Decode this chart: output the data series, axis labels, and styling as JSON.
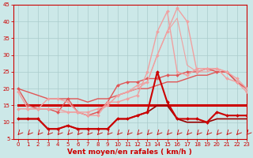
{
  "xlabel": "Vent moyen/en rafales ( km/h )",
  "ylim": [
    5,
    45
  ],
  "xlim": [
    -0.5,
    23
  ],
  "yticks": [
    5,
    10,
    15,
    20,
    25,
    30,
    35,
    40,
    45
  ],
  "xticks": [
    0,
    1,
    2,
    3,
    4,
    5,
    6,
    7,
    8,
    9,
    10,
    11,
    12,
    13,
    14,
    15,
    16,
    17,
    18,
    19,
    20,
    21,
    22,
    23
  ],
  "bg_color": "#cce8e8",
  "grid_color": "#aacccc",
  "series": [
    {
      "x": [
        0,
        1,
        2,
        3,
        4,
        5,
        6,
        7,
        8,
        9,
        10,
        11,
        12,
        13,
        14,
        15,
        16,
        17,
        18,
        19,
        20,
        21,
        22,
        23
      ],
      "y": [
        11,
        11,
        11,
        8,
        8,
        9,
        8,
        8,
        8,
        8,
        11,
        11,
        12,
        13,
        25,
        16,
        11,
        11,
        11,
        10,
        13,
        12,
        12,
        12
      ],
      "color": "#cc0000",
      "lw": 1.5,
      "marker": "D",
      "ms": 2.0,
      "zorder": 5
    },
    {
      "x": [
        0,
        1,
        2,
        3,
        4,
        5,
        6,
        7,
        8,
        9,
        10,
        11,
        12,
        13,
        14,
        15,
        16,
        17,
        18,
        19,
        20,
        21,
        22,
        23
      ],
      "y": [
        11,
        11,
        11,
        8,
        8,
        9,
        8,
        8,
        8,
        8,
        11,
        11,
        12,
        13,
        15,
        15,
        11,
        10,
        10,
        10,
        11,
        11,
        11,
        11
      ],
      "color": "#990000",
      "lw": 1.2,
      "marker": null,
      "ms": 0,
      "zorder": 4
    },
    {
      "x": [
        0,
        1,
        2,
        3,
        4,
        5,
        6,
        7,
        8,
        9,
        10,
        11,
        12,
        13,
        14,
        15,
        16,
        17,
        18,
        19,
        20,
        21,
        22,
        23
      ],
      "y": [
        15,
        15,
        15,
        15,
        15,
        15,
        15,
        15,
        15,
        15,
        15,
        15,
        15,
        15,
        15,
        15,
        15,
        15,
        15,
        15,
        15,
        15,
        15,
        15
      ],
      "color": "#cc0000",
      "lw": 2.2,
      "marker": null,
      "ms": 0,
      "zorder": 3
    },
    {
      "x": [
        0,
        1,
        2,
        3,
        4,
        5,
        6,
        7,
        8,
        9,
        10,
        11,
        12,
        13,
        14,
        15,
        16,
        17,
        18,
        19,
        20,
        21,
        22,
        23
      ],
      "y": [
        20,
        15,
        14,
        14,
        13,
        17,
        13,
        12,
        13,
        16,
        21,
        22,
        22,
        23,
        23,
        24,
        24,
        25,
        25,
        26,
        25,
        25,
        22,
        20
      ],
      "color": "#e05555",
      "lw": 1.0,
      "marker": "D",
      "ms": 2.0,
      "zorder": 4
    },
    {
      "x": [
        0,
        1,
        2,
        3,
        4,
        5,
        6,
        7,
        8,
        9,
        10,
        11,
        12,
        13,
        14,
        15,
        16,
        17,
        18,
        19,
        20,
        21,
        22,
        23
      ],
      "y": [
        20,
        19,
        18,
        17,
        17,
        17,
        17,
        16,
        17,
        17,
        18,
        19,
        20,
        20,
        21,
        22,
        22,
        23,
        24,
        24,
        25,
        25,
        22,
        20
      ],
      "color": "#e05555",
      "lw": 1.0,
      "marker": null,
      "ms": 0,
      "zorder": 3
    },
    {
      "x": [
        0,
        1,
        2,
        3,
        4,
        5,
        6,
        7,
        8,
        9,
        10,
        11,
        12,
        13,
        14,
        15,
        16,
        17,
        18,
        19,
        20,
        21,
        22,
        23
      ],
      "y": [
        19,
        14,
        14,
        17,
        17,
        16,
        13,
        12,
        12,
        16,
        16,
        17,
        18,
        25,
        37,
        43,
        25,
        24,
        26,
        26,
        26,
        23,
        22,
        19
      ],
      "color": "#f0a0a0",
      "lw": 1.0,
      "marker": "D",
      "ms": 2.0,
      "zorder": 4
    },
    {
      "x": [
        0,
        1,
        2,
        3,
        4,
        5,
        6,
        7,
        8,
        9,
        10,
        11,
        12,
        13,
        14,
        15,
        16,
        17,
        18,
        19,
        20,
        21,
        22,
        23
      ],
      "y": [
        14,
        14,
        14,
        14,
        14,
        13,
        13,
        13,
        14,
        15,
        18,
        19,
        21,
        22,
        30,
        37,
        44,
        40,
        25,
        26,
        26,
        25,
        23,
        20
      ],
      "color": "#f0a0a0",
      "lw": 1.0,
      "marker": "D",
      "ms": 2.0,
      "zorder": 4
    },
    {
      "x": [
        0,
        1,
        2,
        3,
        4,
        5,
        6,
        7,
        8,
        9,
        10,
        11,
        12,
        13,
        14,
        15,
        16,
        17,
        18,
        19,
        20,
        21,
        22,
        23
      ],
      "y": [
        14,
        14,
        14,
        14,
        13,
        13,
        13,
        12,
        13,
        15,
        18,
        19,
        20,
        22,
        30,
        37,
        41,
        27,
        25,
        25,
        26,
        25,
        22,
        20
      ],
      "color": "#f0a0a0",
      "lw": 0.8,
      "marker": null,
      "ms": 0,
      "zorder": 3
    }
  ],
  "arrow_color": "#cc0000",
  "xlabel_fontsize": 6.5,
  "tick_fontsize": 5.0
}
